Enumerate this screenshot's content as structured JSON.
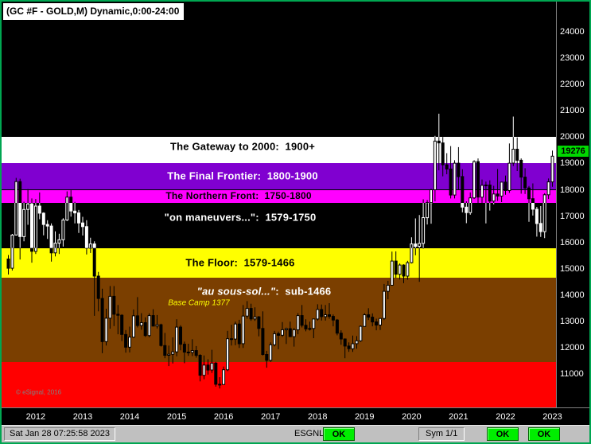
{
  "window": {
    "title": "(GC #F - GOLD,M) Dynamic,0:00-24:00"
  },
  "status_bar": {
    "timestamp": "Sat Jan 28 07:25:58 2023",
    "esgnl_label": "ESGNL:",
    "ok1": "OK",
    "sym_label": "Sym 1/1",
    "ok2": "OK",
    "ok3": "OK"
  },
  "colors": {
    "background": "#000000",
    "frame": "#00A651",
    "axis_text": "#FFFFFF",
    "last_price_tag_bg": "#00D800",
    "status_bar_bg": "#C0C0C0",
    "ok_button_bg": "#00EE00"
  },
  "chart_data": {
    "type": "candlestick",
    "title": "(GC #F - GOLD,M) Dynamic,0:00-24:00",
    "symbol": "GC #F - GOLD, Monthly",
    "session": "Dynamic,0:00-24:00",
    "last_price": 19276,
    "last_price_label": "19276",
    "ylim": [
      9730,
      25150
    ],
    "y_ticks": [
      24000,
      23000,
      22000,
      21000,
      20000,
      19000,
      18000,
      17000,
      16000,
      15000,
      14000,
      13000,
      12000,
      11000
    ],
    "x_years": [
      2012,
      2013,
      2014,
      2015,
      2016,
      2017,
      2018,
      2019,
      2020,
      2021,
      2022,
      2023
    ],
    "start_month": "2011-06",
    "year_first_index": 7,
    "zones": [
      {
        "id": "above-2000",
        "from": 20000,
        "to": 25150,
        "bg": "#000000",
        "invert_candles": true
      },
      {
        "id": "gateway",
        "from": 19000,
        "to": 20000,
        "bg": "#FFFFFF",
        "fg": "#000000",
        "label": "The Gateway to 2000:  1900+",
        "label_at": 19650,
        "label_x": 303,
        "label_size": 13
      },
      {
        "id": "final-frontier",
        "from": 18000,
        "to": 19000,
        "bg": "#8000D0",
        "fg": "#FFFFFF",
        "label": "The Final Frontier:  1800-1900",
        "label_at": 18520,
        "label_x": 303,
        "label_size": 13
      },
      {
        "id": "northern-front",
        "from": 17500,
        "to": 18000,
        "bg": "#FF00FF",
        "fg": "#000000",
        "label": "The Northern Front:  1750-1800",
        "label_at": 17760,
        "label_x": 298,
        "label_size": 12
      },
      {
        "id": "on-maneuvers",
        "from": 15790,
        "to": 17500,
        "bg": "#000000",
        "fg": "#FFFFFF",
        "invert_candles": true,
        "label": "\"on maneuvers...\":  1579-1750",
        "label_at": 16950,
        "label_x": 300,
        "label_size": 13
      },
      {
        "id": "the-floor",
        "from": 14660,
        "to": 15790,
        "bg": "#FFFF00",
        "fg": "#000000",
        "label": "The Floor:  1579-1466",
        "label_at": 15240,
        "label_x": 300,
        "label_size": 13
      },
      {
        "id": "au-sous-sol",
        "from": 11450,
        "to": 14660,
        "bg": "#7B3F00",
        "fg": "#FFFFFF",
        "label_quote": "\"au sous-sol...\"",
        "label": ":  sub-1466",
        "label_at": 14150,
        "label_x": 330,
        "label_size": 13
      },
      {
        "id": "red-basement",
        "from": 9730,
        "to": 11450,
        "bg": "#FF0000"
      }
    ],
    "annotations": [
      {
        "id": "base-camp",
        "text": "Base Camp 1377",
        "price": 13680,
        "x": 248,
        "color": "#FFFF00",
        "size": 10,
        "italic": true,
        "anchor": "center"
      },
      {
        "id": "watermark",
        "text": "© eSignal, 2016",
        "price": 10300,
        "x": 18,
        "color": "#808080",
        "size": 8,
        "italic": false,
        "anchor": "left"
      }
    ],
    "candles": [
      [
        15370,
        15520,
        14780,
        15020
      ],
      [
        15020,
        16320,
        14930,
        16280
      ],
      [
        16280,
        18450,
        16260,
        18310
      ],
      [
        18310,
        18420,
        15350,
        16220
      ],
      [
        16220,
        17545,
        16040,
        17250
      ],
      [
        17250,
        18025,
        16670,
        17460
      ],
      [
        17460,
        17670,
        15230,
        15660
      ],
      [
        15660,
        17650,
        15560,
        17380
      ],
      [
        17380,
        17900,
        16880,
        17110
      ],
      [
        17110,
        17140,
        16270,
        16680
      ],
      [
        16680,
        16840,
        16130,
        16620
      ],
      [
        16620,
        16720,
        15270,
        15600
      ],
      [
        15600,
        16420,
        15470,
        15970
      ],
      [
        15970,
        16330,
        15560,
        16100
      ],
      [
        16100,
        16920,
        15840,
        16850
      ],
      [
        16850,
        17940,
        16810,
        17720
      ],
      [
        17720,
        17980,
        16980,
        17190
      ],
      [
        17190,
        17540,
        16720,
        17120
      ],
      [
        17120,
        17230,
        16360,
        16740
      ],
      [
        16740,
        16970,
        16260,
        16600
      ],
      [
        16600,
        16840,
        15540,
        15780
      ],
      [
        15780,
        16180,
        15600,
        15940
      ],
      [
        15940,
        16040,
        13210,
        14720
      ],
      [
        14720,
        14880,
        13380,
        13870
      ],
      [
        13870,
        14240,
        11790,
        12230
      ],
      [
        12230,
        13480,
        12080,
        13120
      ],
      [
        13120,
        14340,
        12720,
        13950
      ],
      [
        13950,
        14340,
        12820,
        13270
      ],
      [
        13270,
        13620,
        12510,
        13230
      ],
      [
        13230,
        13270,
        12250,
        12500
      ],
      [
        12500,
        12670,
        11810,
        12020
      ],
      [
        12020,
        12800,
        11820,
        12400
      ],
      [
        12400,
        13450,
        12370,
        13210
      ],
      [
        13210,
        13920,
        12770,
        12840
      ],
      [
        12840,
        13310,
        12680,
        12950
      ],
      [
        12950,
        13150,
        12410,
        12460
      ],
      [
        12460,
        13300,
        12400,
        13220
      ],
      [
        13220,
        13460,
        12810,
        12820
      ],
      [
        12820,
        13240,
        12730,
        12870
      ],
      [
        12870,
        12910,
        12040,
        12080
      ],
      [
        12080,
        12560,
        11600,
        11710
      ],
      [
        11710,
        12080,
        11300,
        11750
      ],
      [
        11750,
        12390,
        11400,
        11840
      ],
      [
        11840,
        13080,
        11670,
        12780
      ],
      [
        12780,
        12850,
        11900,
        12130
      ],
      [
        12130,
        12230,
        11410,
        11830
      ],
      [
        11830,
        12150,
        11690,
        11820
      ],
      [
        11820,
        12320,
        11680,
        11890
      ],
      [
        11890,
        12060,
        11620,
        11710
      ],
      [
        11710,
        11750,
        10720,
        10950
      ],
      [
        10950,
        11700,
        10800,
        11340
      ],
      [
        11340,
        11560,
        10980,
        11150
      ],
      [
        11150,
        11920,
        11040,
        11410
      ],
      [
        11410,
        11460,
        10520,
        10610
      ],
      [
        10610,
        10880,
        10450,
        10600
      ],
      [
        10600,
        11280,
        10610,
        11160
      ],
      [
        11160,
        12640,
        11110,
        12340
      ],
      [
        12340,
        12870,
        12080,
        12330
      ],
      [
        12330,
        12990,
        12090,
        12900
      ],
      [
        12900,
        13060,
        11990,
        12150
      ],
      [
        12150,
        13620,
        11990,
        13200
      ],
      [
        13200,
        13770,
        13100,
        13490
      ],
      [
        13490,
        13670,
        13020,
        13090
      ],
      [
        13090,
        13530,
        13020,
        13170
      ],
      [
        13170,
        13200,
        12430,
        12730
      ],
      [
        12730,
        13380,
        11700,
        11740
      ],
      [
        11740,
        11880,
        11240,
        11520
      ],
      [
        11520,
        12200,
        11460,
        12110
      ],
      [
        12110,
        12640,
        12050,
        12530
      ],
      [
        12530,
        12610,
        11940,
        12470
      ],
      [
        12470,
        12970,
        12410,
        12680
      ],
      [
        12680,
        12760,
        12140,
        12720
      ],
      [
        12720,
        12990,
        12400,
        12420
      ],
      [
        12420,
        12750,
        12040,
        12680
      ],
      [
        12680,
        13310,
        12510,
        13220
      ],
      [
        13220,
        13620,
        12770,
        12850
      ],
      [
        12850,
        13080,
        12620,
        12710
      ],
      [
        12710,
        12990,
        12650,
        12730
      ],
      [
        12730,
        13090,
        12360,
        13090
      ],
      [
        13090,
        13650,
        13030,
        13450
      ],
      [
        13450,
        13640,
        13030,
        13180
      ],
      [
        13180,
        13620,
        13030,
        13250
      ],
      [
        13250,
        13690,
        13100,
        13190
      ],
      [
        13190,
        13260,
        12810,
        13050
      ],
      [
        13050,
        13090,
        12470,
        12550
      ],
      [
        12550,
        12660,
        12110,
        12330
      ],
      [
        12330,
        12350,
        11600,
        12060
      ],
      [
        12060,
        12200,
        11840,
        11960
      ],
      [
        11960,
        12460,
        11840,
        12150
      ],
      [
        12150,
        12440,
        11960,
        12260
      ],
      [
        12260,
        12840,
        12220,
        12810
      ],
      [
        12810,
        13310,
        12790,
        13250
      ],
      [
        13250,
        13500,
        13050,
        13160
      ],
      [
        13160,
        13300,
        12810,
        12980
      ],
      [
        12980,
        13100,
        12660,
        12860
      ],
      [
        12860,
        13110,
        12670,
        13110
      ],
      [
        13110,
        14420,
        13050,
        14140
      ],
      [
        14140,
        14540,
        13840,
        14370
      ],
      [
        14370,
        15650,
        14370,
        15290
      ],
      [
        15290,
        15660,
        14650,
        14790
      ],
      [
        14790,
        15200,
        14590,
        15140
      ],
      [
        15140,
        15170,
        14450,
        14720
      ],
      [
        14720,
        15300,
        14580,
        15230
      ],
      [
        15230,
        16190,
        15200,
        15940
      ],
      [
        15940,
        16910,
        15510,
        15850
      ],
      [
        15850,
        17040,
        14500,
        15960
      ],
      [
        15960,
        17640,
        15760,
        16940
      ],
      [
        16940,
        17610,
        16680,
        17510
      ],
      [
        17510,
        18040,
        16710,
        18000
      ],
      [
        18000,
        20050,
        17560,
        19850
      ],
      [
        19850,
        20890,
        18740,
        19780
      ],
      [
        19780,
        20010,
        18510,
        18950
      ],
      [
        18950,
        19390,
        18590,
        18790
      ],
      [
        18790,
        19660,
        17670,
        17800
      ],
      [
        17800,
        19120,
        17670,
        19010
      ],
      [
        19010,
        19620,
        18000,
        18500
      ],
      [
        18500,
        18780,
        17140,
        17340
      ],
      [
        17340,
        17560,
        16730,
        17130
      ],
      [
        17130,
        17900,
        17050,
        17690
      ],
      [
        17690,
        19120,
        17650,
        19070
      ],
      [
        19070,
        19190,
        17500,
        17720
      ],
      [
        17720,
        18390,
        17500,
        18170
      ],
      [
        18170,
        18310,
        16720,
        18180
      ],
      [
        18180,
        18360,
        17210,
        17570
      ],
      [
        17570,
        18150,
        17450,
        17840
      ],
      [
        17840,
        18790,
        17580,
        17760
      ],
      [
        17760,
        18200,
        17530,
        18290
      ],
      [
        18290,
        18540,
        17810,
        17970
      ],
      [
        17970,
        19760,
        17880,
        19010
      ],
      [
        19010,
        20780,
        18900,
        19540
      ],
      [
        19540,
        19990,
        18710,
        19120
      ],
      [
        19120,
        19190,
        17850,
        18480
      ],
      [
        18480,
        18820,
        17840,
        18070
      ],
      [
        18070,
        18140,
        16780,
        17660
      ],
      [
        17660,
        18240,
        17020,
        17260
      ],
      [
        17260,
        17350,
        16220,
        16720
      ],
      [
        16720,
        17380,
        16210,
        16410
      ],
      [
        16410,
        17870,
        16160,
        17810
      ],
      [
        17810,
        18430,
        17650,
        18300
      ],
      [
        18300,
        19490,
        18110,
        19276
      ]
    ]
  }
}
